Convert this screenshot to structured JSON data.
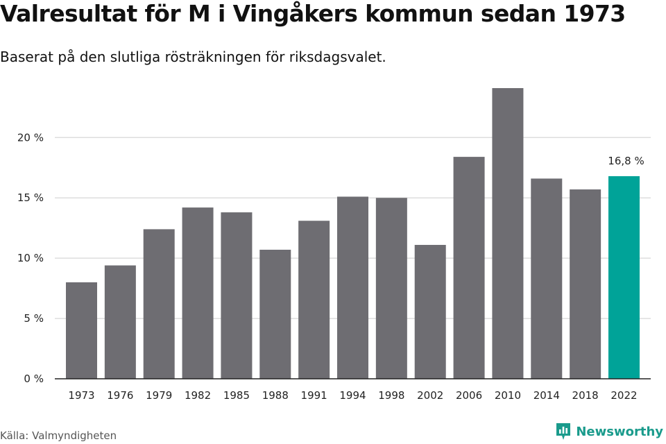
{
  "title": "Valresultat för M i Vingåkers kommun sedan 1973",
  "subtitle": "Baserat på den slutliga rösträkningen för riksdagsvalet.",
  "source": "Källa: Valmyndigheten",
  "brand": "Newsworthy",
  "colors": {
    "bar": "#6e6d72",
    "highlight": "#00a398",
    "grid": "#dddddd",
    "axis": "#222222",
    "brand": "#1a9b8c"
  },
  "chart_data": {
    "type": "bar",
    "categories": [
      "1973",
      "1976",
      "1979",
      "1982",
      "1985",
      "1988",
      "1991",
      "1994",
      "1998",
      "2002",
      "2006",
      "2010",
      "2014",
      "2018",
      "2022"
    ],
    "values": [
      8.0,
      9.4,
      12.4,
      14.2,
      13.8,
      10.7,
      13.1,
      15.1,
      15.0,
      11.1,
      18.4,
      24.1,
      16.6,
      15.7,
      16.8
    ],
    "highlight_index": 14,
    "highlight_label": "16,8 %",
    "yticks": [
      0,
      5,
      10,
      15,
      20
    ],
    "ytick_labels": [
      "0 %",
      "5 %",
      "10 %",
      "15 %",
      "20 %"
    ],
    "ylim": [
      0,
      24.1
    ],
    "grid": true
  }
}
